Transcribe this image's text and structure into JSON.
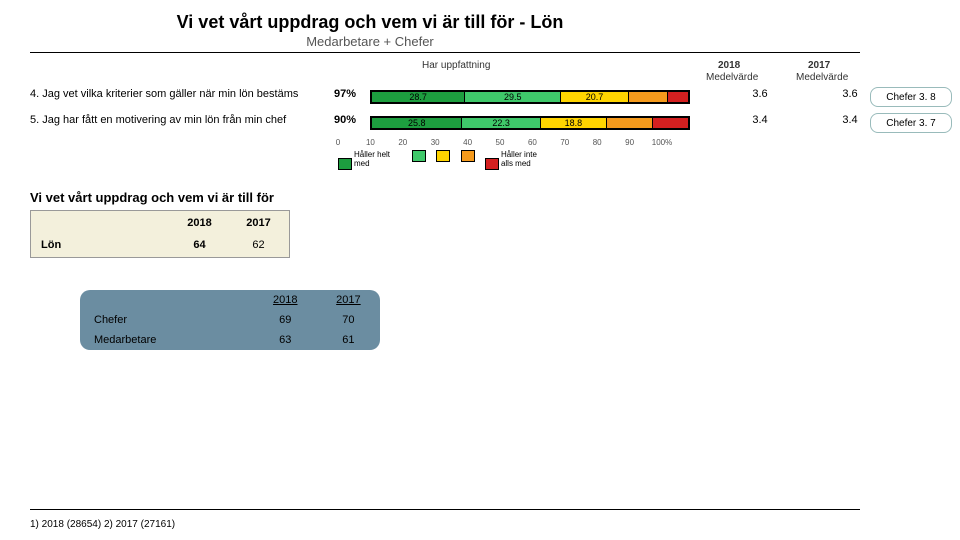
{
  "title": "Vi vet vårt uppdrag och vem vi är till för - Lön",
  "subtitle": "Medarbetare + Chefer",
  "column_headers": {
    "opinion": "Har uppfattning",
    "mv2018_label": "2018",
    "mv2018_sub": "Medelvärde",
    "mv2017_label": "2017",
    "mv2017_sub": "Medelvärde"
  },
  "palette": {
    "dark_green": "#1d9e3f",
    "green": "#3fc86a",
    "yellow": "#ffd400",
    "orange": "#f59a1c",
    "red": "#d42020"
  },
  "questions": [
    {
      "text": "4. Jag vet vilka kriterier som gäller när min lön bestäms",
      "pct": "97%",
      "segments": [
        {
          "v": 28.7,
          "label": "28.7",
          "color": "#1d9e3f"
        },
        {
          "v": 29.5,
          "label": "29.5",
          "color": "#3fc86a"
        },
        {
          "v": 20.7,
          "label": "20.7",
          "color": "#ffd400"
        },
        {
          "v": 12.0,
          "label": "",
          "color": "#f59a1c"
        },
        {
          "v": 6.1,
          "label": "",
          "color": "#d42020"
        }
      ],
      "mv2018": "3.6",
      "mv2017": "3.6",
      "chefer": "Chefer 3. 8"
    },
    {
      "text": "5. Jag har fått en motivering av min lön från min chef",
      "pct": "90%",
      "segments": [
        {
          "v": 25.8,
          "label": "25.8",
          "color": "#1d9e3f"
        },
        {
          "v": 22.3,
          "label": "22.3",
          "color": "#3fc86a"
        },
        {
          "v": 18.8,
          "label": "18.8",
          "color": "#ffd400"
        },
        {
          "v": 13.1,
          "label": "",
          "color": "#f59a1c"
        },
        {
          "v": 10.0,
          "label": "",
          "color": "#d42020"
        }
      ],
      "mv2018": "3.4",
      "mv2017": "3.4",
      "chefer": "Chefer 3. 7"
    }
  ],
  "axis_ticks": [
    "0",
    "10",
    "20",
    "30",
    "40",
    "50",
    "60",
    "70",
    "80",
    "90",
    "100%"
  ],
  "legend": {
    "left_label": "Håller helt med",
    "right_label": "Håller inte alls med"
  },
  "section2_title": "Vi vet vårt uppdrag och vem vi är till för",
  "mini_table": {
    "headers": [
      "",
      "2018",
      "2017"
    ],
    "row_label": "Lön",
    "v2018": "64",
    "v2017": "62"
  },
  "blue_table": {
    "headers": [
      "2018",
      "2017"
    ],
    "rows": [
      {
        "label": "Chefer",
        "v2018": "69",
        "v2017": "70"
      },
      {
        "label": "Medarbetare",
        "v2018": "63",
        "v2017": "61"
      }
    ]
  },
  "footnote": "1) 2018 (28654)   2) 2017 (27161)"
}
